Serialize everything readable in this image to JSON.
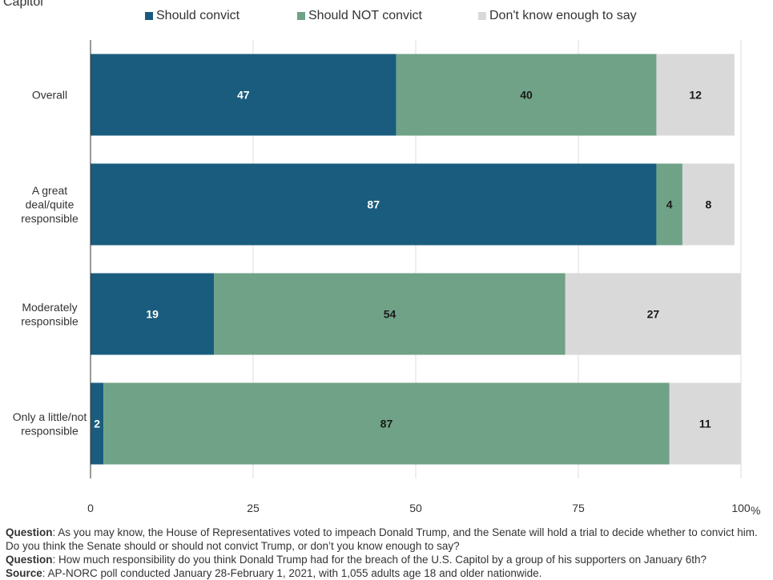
{
  "header": {
    "title_partial": "Capitol"
  },
  "colors": {
    "should_convict": "#1a5c7d",
    "should_not_convict": "#6fa287",
    "dont_know": "#d9d9d9",
    "grid": "#dddddd",
    "axis": "#333333"
  },
  "chart_data": {
    "type": "bar",
    "orientation": "horizontal",
    "stacked": true,
    "categories": [
      "Overall",
      "A great deal/quite responsible",
      "Moderately responsible",
      "Only a little/not responsible"
    ],
    "category_label_lines": [
      [
        "Overall"
      ],
      [
        "A great",
        "deal/quite",
        "responsible"
      ],
      [
        "Moderately",
        "responsible"
      ],
      [
        "Only a little/not",
        "responsible"
      ]
    ],
    "series": [
      {
        "name": "Should convict",
        "values": [
          47,
          87,
          19,
          2
        ]
      },
      {
        "name": "Should NOT convict",
        "values": [
          40,
          4,
          54,
          87
        ]
      },
      {
        "name": "Don't know enough to say",
        "values": [
          12,
          8,
          27,
          11
        ]
      }
    ],
    "xlim": [
      0,
      100
    ],
    "x_ticks": [
      "0",
      "25",
      "50",
      "75",
      "100"
    ],
    "x_unit": "%",
    "grid": true,
    "legend_position": "top"
  },
  "footnotes": [
    {
      "label": "Question",
      "text": ": As you may know, the House of Representatives voted to impeach Donald Trump, and the Senate will hold a trial to decide whether to convict him. Do you think the Senate should or should not convict Trump, or don’t you know enough to say?"
    },
    {
      "label": "Question",
      "text": ": How much responsibility do you think Donald Trump had for the breach of the U.S. Capitol by a group of his supporters on January 6th?"
    },
    {
      "label": "Source",
      "text": ": AP-NORC poll conducted January 28-February 1, 2021, with 1,055 adults age 18 and older nationwide."
    }
  ]
}
